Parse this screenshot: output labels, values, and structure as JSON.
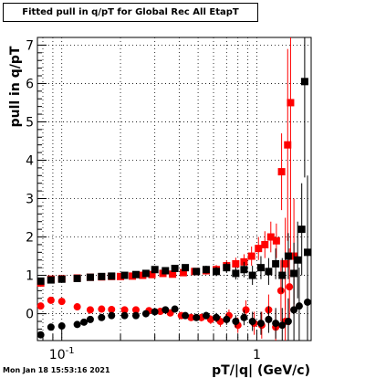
{
  "chart_data": {
    "type": "scatter",
    "title": "Fitted pull in q/pT for Global Rec All EtapT",
    "xlabel": "pT/|q| (GeV/c)",
    "ylabel": "pull in q/pT",
    "xscale": "log",
    "xlim": [
      0.075,
      1.9
    ],
    "ylim": [
      -0.7,
      7.2
    ],
    "x_tick_labels": [
      "10",
      "1"
    ],
    "x_tick_label_exponents": [
      "-1",
      ""
    ],
    "y_ticks": [
      0,
      1,
      2,
      3,
      4,
      5,
      6,
      7
    ],
    "grid": true,
    "series": [
      {
        "color": "#ff0000",
        "marker": "square",
        "points": [
          {
            "x": 0.078,
            "y": 0.8,
            "err": 0.1
          },
          {
            "x": 0.088,
            "y": 0.9,
            "err": 0.06
          },
          {
            "x": 0.1,
            "y": 0.91,
            "err": 0.04
          },
          {
            "x": 0.12,
            "y": 0.93,
            "err": 0.04
          },
          {
            "x": 0.14,
            "y": 0.95,
            "err": 0.04
          },
          {
            "x": 0.16,
            "y": 0.96,
            "err": 0.04
          },
          {
            "x": 0.18,
            "y": 0.97,
            "err": 0.04
          },
          {
            "x": 0.2,
            "y": 0.97,
            "err": 0.05
          },
          {
            "x": 0.23,
            "y": 0.98,
            "err": 0.05
          },
          {
            "x": 0.26,
            "y": 1.0,
            "err": 0.05
          },
          {
            "x": 0.29,
            "y": 1.02,
            "err": 0.06
          },
          {
            "x": 0.33,
            "y": 1.05,
            "err": 0.07
          },
          {
            "x": 0.37,
            "y": 1.03,
            "err": 0.07
          },
          {
            "x": 0.42,
            "y": 1.07,
            "err": 0.08
          },
          {
            "x": 0.48,
            "y": 1.1,
            "err": 0.09
          },
          {
            "x": 0.55,
            "y": 1.12,
            "err": 0.1
          },
          {
            "x": 0.62,
            "y": 1.15,
            "err": 0.12
          },
          {
            "x": 0.7,
            "y": 1.25,
            "err": 0.14
          },
          {
            "x": 0.78,
            "y": 1.3,
            "err": 0.16
          },
          {
            "x": 0.86,
            "y": 1.35,
            "err": 0.2
          },
          {
            "x": 0.94,
            "y": 1.5,
            "err": 0.25
          },
          {
            "x": 1.02,
            "y": 1.7,
            "err": 0.3
          },
          {
            "x": 1.1,
            "y": 1.8,
            "err": 0.35
          },
          {
            "x": 1.18,
            "y": 2.0,
            "err": 0.4
          },
          {
            "x": 1.26,
            "y": 1.9,
            "err": 0.45
          },
          {
            "x": 1.34,
            "y": 3.7,
            "err": 1.0
          },
          {
            "x": 1.4,
            "y": 1.3,
            "err": 1.2
          },
          {
            "x": 1.44,
            "y": 4.4,
            "err": 2.5
          },
          {
            "x": 1.49,
            "y": 5.5,
            "err": 4.0
          },
          {
            "x": 1.55,
            "y": 1.5,
            "err": 1.5
          }
        ]
      },
      {
        "color": "#ff0000",
        "marker": "circle",
        "points": [
          {
            "x": 0.078,
            "y": 0.2,
            "err": 0.08
          },
          {
            "x": 0.088,
            "y": 0.35,
            "err": 0.05
          },
          {
            "x": 0.1,
            "y": 0.32,
            "err": 0.04
          },
          {
            "x": 0.12,
            "y": 0.18,
            "err": 0.04
          },
          {
            "x": 0.14,
            "y": 0.1,
            "err": 0.04
          },
          {
            "x": 0.16,
            "y": 0.12,
            "err": 0.04
          },
          {
            "x": 0.18,
            "y": 0.11,
            "err": 0.05
          },
          {
            "x": 0.21,
            "y": 0.1,
            "err": 0.05
          },
          {
            "x": 0.24,
            "y": 0.1,
            "err": 0.05
          },
          {
            "x": 0.28,
            "y": 0.08,
            "err": 0.06
          },
          {
            "x": 0.32,
            "y": 0.06,
            "err": 0.06
          },
          {
            "x": 0.36,
            "y": 0.02,
            "err": 0.07
          },
          {
            "x": 0.41,
            "y": -0.05,
            "err": 0.08
          },
          {
            "x": 0.46,
            "y": -0.1,
            "err": 0.09
          },
          {
            "x": 0.52,
            "y": -0.1,
            "err": 0.1
          },
          {
            "x": 0.58,
            "y": -0.15,
            "err": 0.12
          },
          {
            "x": 0.65,
            "y": -0.2,
            "err": 0.14
          },
          {
            "x": 0.72,
            "y": -0.05,
            "err": 0.16
          },
          {
            "x": 0.8,
            "y": -0.3,
            "err": 0.2
          },
          {
            "x": 0.88,
            "y": 0.1,
            "err": 0.25
          },
          {
            "x": 0.97,
            "y": -0.25,
            "err": 0.3
          },
          {
            "x": 1.06,
            "y": -0.3,
            "err": 0.35
          },
          {
            "x": 1.15,
            "y": 0.1,
            "err": 0.4
          },
          {
            "x": 1.25,
            "y": -0.35,
            "err": 0.45
          },
          {
            "x": 1.33,
            "y": 0.6,
            "err": 0.8
          },
          {
            "x": 1.4,
            "y": -0.2,
            "err": 0.8
          },
          {
            "x": 1.47,
            "y": 0.7,
            "err": 1.0
          }
        ]
      },
      {
        "color": "#000000",
        "marker": "square",
        "points": [
          {
            "x": 0.078,
            "y": 0.85,
            "err": 0.08
          },
          {
            "x": 0.088,
            "y": 0.88,
            "err": 0.05
          },
          {
            "x": 0.1,
            "y": 0.9,
            "err": 0.04
          },
          {
            "x": 0.12,
            "y": 0.92,
            "err": 0.04
          },
          {
            "x": 0.14,
            "y": 0.95,
            "err": 0.04
          },
          {
            "x": 0.16,
            "y": 0.97,
            "err": 0.04
          },
          {
            "x": 0.18,
            "y": 0.98,
            "err": 0.04
          },
          {
            "x": 0.21,
            "y": 1.0,
            "err": 0.05
          },
          {
            "x": 0.24,
            "y": 1.02,
            "err": 0.05
          },
          {
            "x": 0.27,
            "y": 1.05,
            "err": 0.05
          },
          {
            "x": 0.3,
            "y": 1.15,
            "err": 0.06
          },
          {
            "x": 0.34,
            "y": 1.12,
            "err": 0.06
          },
          {
            "x": 0.38,
            "y": 1.18,
            "err": 0.07
          },
          {
            "x": 0.43,
            "y": 1.2,
            "err": 0.08
          },
          {
            "x": 0.49,
            "y": 1.1,
            "err": 0.09
          },
          {
            "x": 0.55,
            "y": 1.15,
            "err": 0.1
          },
          {
            "x": 0.62,
            "y": 1.1,
            "err": 0.12
          },
          {
            "x": 0.7,
            "y": 1.2,
            "err": 0.14
          },
          {
            "x": 0.78,
            "y": 1.05,
            "err": 0.16
          },
          {
            "x": 0.86,
            "y": 1.15,
            "err": 0.2
          },
          {
            "x": 0.95,
            "y": 1.0,
            "err": 0.25
          },
          {
            "x": 1.05,
            "y": 1.2,
            "err": 0.3
          },
          {
            "x": 1.15,
            "y": 1.1,
            "err": 0.35
          },
          {
            "x": 1.25,
            "y": 1.3,
            "err": 0.4
          },
          {
            "x": 1.35,
            "y": 1.0,
            "err": 0.45
          },
          {
            "x": 1.45,
            "y": 1.5,
            "err": 0.6
          },
          {
            "x": 1.55,
            "y": 1.05,
            "err": 0.8
          },
          {
            "x": 1.62,
            "y": 1.4,
            "err": 1.0
          },
          {
            "x": 1.7,
            "y": 2.2,
            "err": 1.2
          },
          {
            "x": 1.76,
            "y": 6.05,
            "err": 2.5
          },
          {
            "x": 1.82,
            "y": 1.6,
            "err": 2.0
          }
        ]
      },
      {
        "color": "#000000",
        "marker": "circle",
        "points": [
          {
            "x": 0.078,
            "y": -0.55,
            "err": 0.08
          },
          {
            "x": 0.088,
            "y": -0.35,
            "err": 0.05
          },
          {
            "x": 0.1,
            "y": -0.32,
            "err": 0.04
          },
          {
            "x": 0.12,
            "y": -0.28,
            "err": 0.04
          },
          {
            "x": 0.13,
            "y": -0.22,
            "err": 0.04
          },
          {
            "x": 0.14,
            "y": -0.15,
            "err": 0.04
          },
          {
            "x": 0.16,
            "y": -0.1,
            "err": 0.04
          },
          {
            "x": 0.18,
            "y": -0.05,
            "err": 0.05
          },
          {
            "x": 0.21,
            "y": -0.05,
            "err": 0.05
          },
          {
            "x": 0.24,
            "y": -0.05,
            "err": 0.05
          },
          {
            "x": 0.27,
            "y": 0.0,
            "err": 0.05
          },
          {
            "x": 0.3,
            "y": 0.05,
            "err": 0.06
          },
          {
            "x": 0.34,
            "y": 0.1,
            "err": 0.06
          },
          {
            "x": 0.38,
            "y": 0.12,
            "err": 0.07
          },
          {
            "x": 0.43,
            "y": -0.05,
            "err": 0.08
          },
          {
            "x": 0.49,
            "y": -0.1,
            "err": 0.09
          },
          {
            "x": 0.55,
            "y": -0.05,
            "err": 0.1
          },
          {
            "x": 0.62,
            "y": -0.1,
            "err": 0.12
          },
          {
            "x": 0.7,
            "y": -0.15,
            "err": 0.14
          },
          {
            "x": 0.78,
            "y": -0.2,
            "err": 0.16
          },
          {
            "x": 0.86,
            "y": -0.1,
            "err": 0.2
          },
          {
            "x": 0.95,
            "y": -0.2,
            "err": 0.25
          },
          {
            "x": 1.05,
            "y": -0.25,
            "err": 0.3
          },
          {
            "x": 1.15,
            "y": -0.15,
            "err": 0.35
          },
          {
            "x": 1.25,
            "y": -0.25,
            "err": 0.4
          },
          {
            "x": 1.35,
            "y": -0.3,
            "err": 0.45
          },
          {
            "x": 1.45,
            "y": -0.2,
            "err": 0.6
          },
          {
            "x": 1.55,
            "y": 0.1,
            "err": 0.8
          },
          {
            "x": 1.65,
            "y": 0.2,
            "err": 1.0
          },
          {
            "x": 1.82,
            "y": 0.3,
            "err": 1.2
          }
        ]
      }
    ]
  },
  "footer": {
    "timestamp": "Mon Jan 18 15:53:16 2021"
  }
}
